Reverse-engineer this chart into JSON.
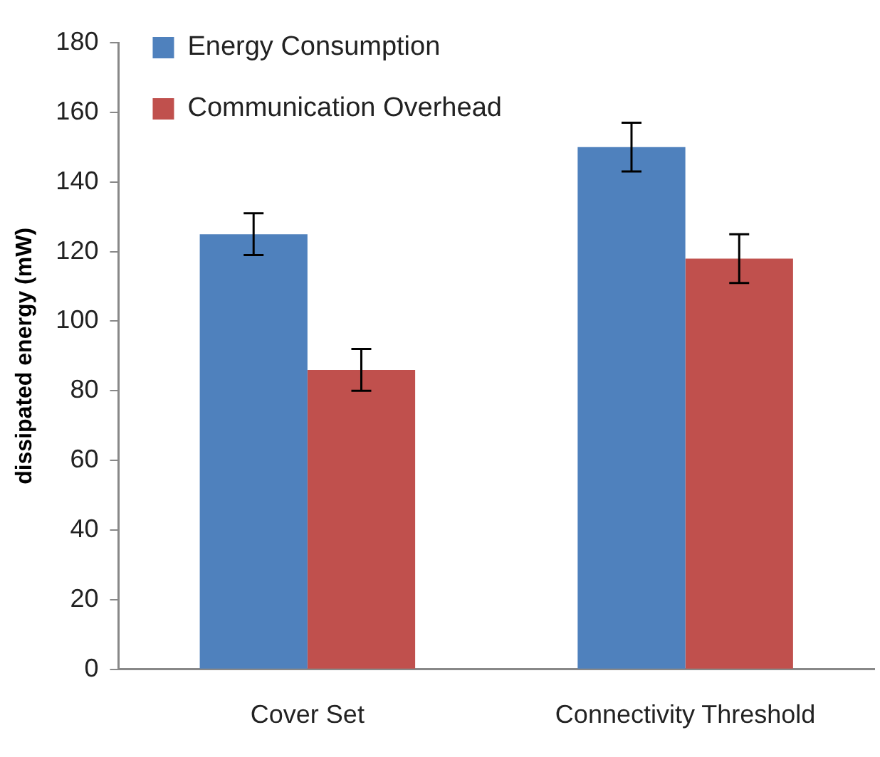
{
  "chart_data": {
    "type": "bar",
    "ylabel": "dissipated energy (mW)",
    "categories": [
      "Cover Set",
      "Connectivity Threshold"
    ],
    "series": [
      {
        "name": "Energy Consumption",
        "color": "#4f81bd",
        "values": [
          125,
          150
        ],
        "errors": [
          6,
          7
        ]
      },
      {
        "name": "Communication Overhead",
        "color": "#c0504d",
        "values": [
          86,
          118
        ],
        "errors": [
          6,
          7
        ]
      }
    ],
    "ylim": [
      0,
      180
    ],
    "yticks": [
      0,
      20,
      40,
      60,
      80,
      100,
      120,
      140,
      160,
      180
    ],
    "grid": false,
    "legend": "top left"
  }
}
